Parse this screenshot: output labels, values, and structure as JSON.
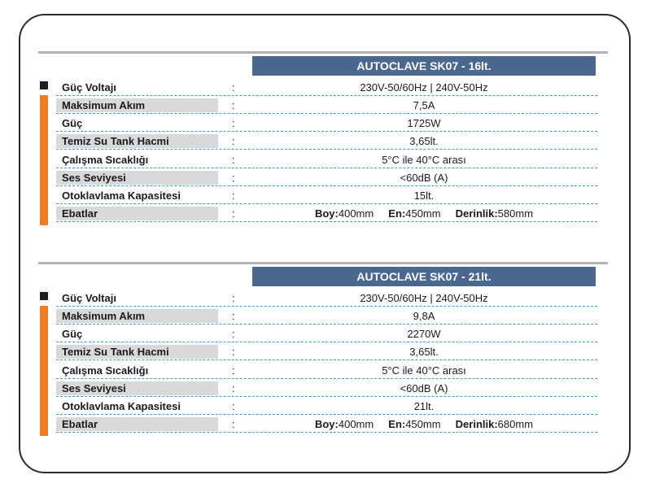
{
  "tables": [
    {
      "title": "AUTOCLAVE SK07 - 16lt.",
      "rows": [
        {
          "label": "Güç Voltajı",
          "value": "230V-50/60Hz | 240V-50Hz"
        },
        {
          "label": "Maksimum Akım",
          "value": "7,5A"
        },
        {
          "label": "Güç",
          "value": "1725W"
        },
        {
          "label": "Temiz Su Tank Hacmi",
          "value": "3,65lt."
        },
        {
          "label": "Çalışma Sıcaklığı",
          "value": "5°C ile 40°C arası"
        },
        {
          "label": "Ses Seviyesi",
          "value": "<60dB (A)"
        },
        {
          "label": "Otoklavlama Kapasitesi",
          "value": "15lt."
        }
      ],
      "dims": {
        "label": "Ebatlar",
        "boy_label": "Boy:",
        "boy": "400mm",
        "en_label": "En:",
        "en": "450mm",
        "derinlik_label": "Derinlik:",
        "derinlik": "580mm"
      }
    },
    {
      "title": "AUTOCLAVE SK07 - 21lt.",
      "rows": [
        {
          "label": "Güç Voltajı",
          "value": "230V-50/60Hz | 240V-50Hz"
        },
        {
          "label": "Maksimum Akım",
          "value": "9,8A"
        },
        {
          "label": "Güç",
          "value": "2270W"
        },
        {
          "label": "Temiz Su Tank Hacmi",
          "value": "3,65lt."
        },
        {
          "label": "Çalışma Sıcaklığı",
          "value": "5°C ile 40°C arası"
        },
        {
          "label": "Ses Seviyesi",
          "value": "<60dB (A)"
        },
        {
          "label": "Otoklavlama Kapasitesi",
          "value": "21lt."
        }
      ],
      "dims": {
        "label": "Ebatlar",
        "boy_label": "Boy:",
        "boy": "400mm",
        "en_label": "En:",
        "en": "450mm",
        "derinlik_label": "Derinlik:",
        "derinlik": "680mm"
      }
    }
  ],
  "separator": ":",
  "colors": {
    "header_bg": "#4a6790",
    "accent": "#ee7d22",
    "dash": "#3a9ad4",
    "shade": "#d9d9d9"
  }
}
